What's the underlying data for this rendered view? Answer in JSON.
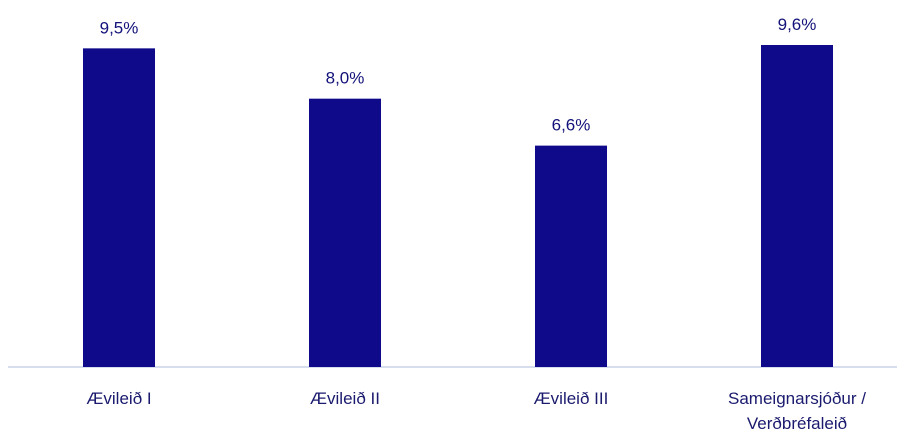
{
  "chart_data": {
    "type": "bar",
    "title": "",
    "xlabel": "",
    "ylabel": "",
    "ylim": [
      0,
      9.6
    ],
    "grid": false,
    "legend": "none",
    "categories": [
      [
        "Ævileið I"
      ],
      [
        "Ævileið II"
      ],
      [
        "Ævileið III"
      ],
      [
        "Sameignarsjóður /",
        "Verðbréfaleið"
      ]
    ],
    "values": [
      9.5,
      8.0,
      6.6,
      9.6
    ],
    "value_labels": [
      "9,5%",
      "8,0%",
      "6,6%",
      "9,6%"
    ]
  },
  "colors": {
    "bar": "#0e0a8a",
    "value_label": "#12127a",
    "category_label": "#1a1a6e",
    "axis": "#c9d2e6"
  }
}
